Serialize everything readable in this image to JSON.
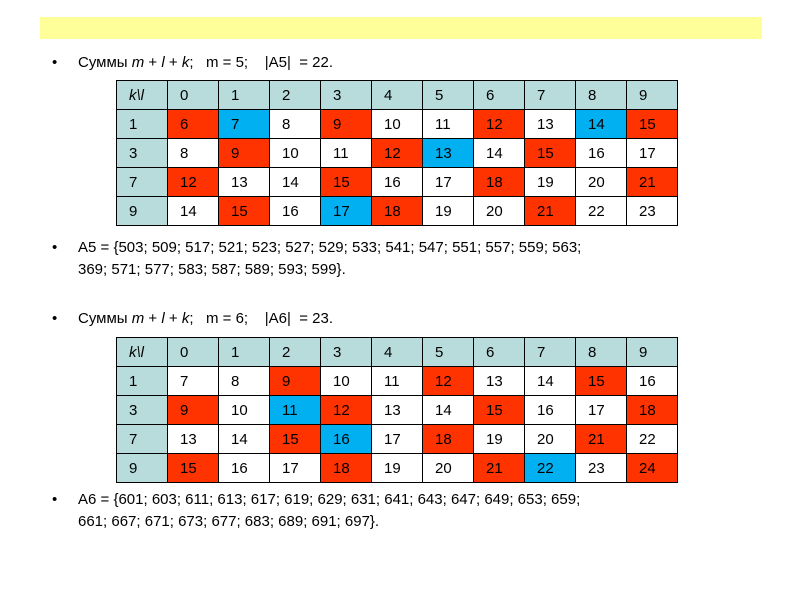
{
  "slide": {
    "line1": {
      "prefix": "Суммы ",
      "m": "m",
      "plus1": " + ",
      "l": "l",
      "plus2": " + ",
      "k": "k",
      "rest": ";   m = 5;    |A5|  = 22."
    },
    "line2": "A5 = {503; 509; 517; 521; 523; 527; 529; 533; 541; 547; 551; 557; 559; 563;",
    "line2b": "369; 571; 577; 583; 587; 589; 593; 599}.",
    "line3": {
      "prefix": "Суммы ",
      "m": "m",
      "plus1": " + ",
      "l": "l",
      "plus2": " + ",
      "k": "k",
      "rest": ";   m = 6;    |A6|  = 23."
    },
    "line4": "A6 = {601; 603; 611; 613; 617; 619; 629; 631; 641; 643; 647; 649; 653; 659;",
    "line4b": "661; 667; 671; 673; 677; 683; 689; 691; 697}."
  },
  "table1": {
    "header": [
      "k\\l",
      "0",
      "1",
      "2",
      "3",
      "4",
      "5",
      "6",
      "7",
      "8",
      "9"
    ],
    "rows": [
      {
        "k": "1",
        "cells": [
          [
            "6",
            "r"
          ],
          [
            "7",
            "b"
          ],
          [
            "8",
            "w"
          ],
          [
            "9",
            "r"
          ],
          [
            "10",
            "w"
          ],
          [
            "11",
            "w"
          ],
          [
            "12",
            "r"
          ],
          [
            "13",
            "w"
          ],
          [
            "14",
            "b"
          ],
          [
            "15",
            "r"
          ]
        ]
      },
      {
        "k": "3",
        "cells": [
          [
            "8",
            "w"
          ],
          [
            "9",
            "r"
          ],
          [
            "10",
            "w"
          ],
          [
            "11",
            "w"
          ],
          [
            "12",
            "r"
          ],
          [
            "13",
            "b"
          ],
          [
            "14",
            "w"
          ],
          [
            "15",
            "r"
          ],
          [
            "16",
            "w"
          ],
          [
            "17",
            "w"
          ]
        ]
      },
      {
        "k": "7",
        "cells": [
          [
            "12",
            "r"
          ],
          [
            "13",
            "w"
          ],
          [
            "14",
            "w"
          ],
          [
            "15",
            "r"
          ],
          [
            "16",
            "w"
          ],
          [
            "17",
            "w"
          ],
          [
            "18",
            "r"
          ],
          [
            "19",
            "w"
          ],
          [
            "20",
            "w"
          ],
          [
            "21",
            "r"
          ]
        ]
      },
      {
        "k": "9",
        "cells": [
          [
            "14",
            "w"
          ],
          [
            "15",
            "r"
          ],
          [
            "16",
            "w"
          ],
          [
            "17",
            "b"
          ],
          [
            "18",
            "r"
          ],
          [
            "19",
            "w"
          ],
          [
            "20",
            "w"
          ],
          [
            "21",
            "r"
          ],
          [
            "22",
            "w"
          ],
          [
            "23",
            "w"
          ]
        ]
      }
    ]
  },
  "table2": {
    "header": [
      "k\\l",
      "0",
      "1",
      "2",
      "3",
      "4",
      "5",
      "6",
      "7",
      "8",
      "9"
    ],
    "rows": [
      {
        "k": "1",
        "cells": [
          [
            "7",
            "w"
          ],
          [
            "8",
            "w"
          ],
          [
            "9",
            "r"
          ],
          [
            "10",
            "w"
          ],
          [
            "11",
            "w"
          ],
          [
            "12",
            "r"
          ],
          [
            "13",
            "w"
          ],
          [
            "14",
            "w"
          ],
          [
            "15",
            "r"
          ],
          [
            "16",
            "w"
          ]
        ]
      },
      {
        "k": "3",
        "cells": [
          [
            "9",
            "r"
          ],
          [
            "10",
            "w"
          ],
          [
            "11",
            "b"
          ],
          [
            "12",
            "r"
          ],
          [
            "13",
            "w"
          ],
          [
            "14",
            "w"
          ],
          [
            "15",
            "r"
          ],
          [
            "16",
            "w"
          ],
          [
            "17",
            "w"
          ],
          [
            "18",
            "r"
          ]
        ]
      },
      {
        "k": "7",
        "cells": [
          [
            "13",
            "w"
          ],
          [
            "14",
            "w"
          ],
          [
            "15",
            "r"
          ],
          [
            "16",
            "b"
          ],
          [
            "17",
            "w"
          ],
          [
            "18",
            "r"
          ],
          [
            "19",
            "w"
          ],
          [
            "20",
            "w"
          ],
          [
            "21",
            "r"
          ],
          [
            "22",
            "w"
          ]
        ]
      },
      {
        "k": "9",
        "cells": [
          [
            "15",
            "r"
          ],
          [
            "16",
            "w"
          ],
          [
            "17",
            "w"
          ],
          [
            "18",
            "r"
          ],
          [
            "19",
            "w"
          ],
          [
            "20",
            "w"
          ],
          [
            "21",
            "r"
          ],
          [
            "22",
            "b"
          ],
          [
            "23",
            "w"
          ],
          [
            "24",
            "r"
          ]
        ]
      }
    ]
  },
  "colors": {
    "header": "#b8dcdc",
    "red": "#ff3300",
    "blue": "#00b0f0",
    "highlight": "#ffff99"
  }
}
